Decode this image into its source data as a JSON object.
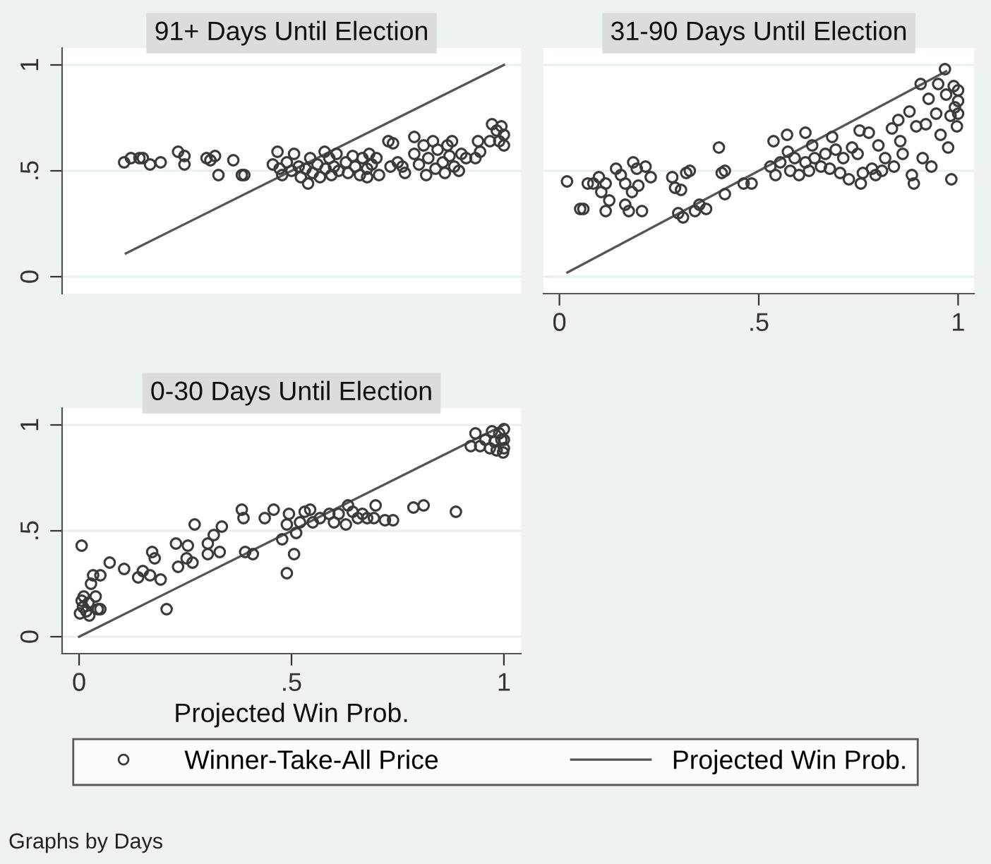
{
  "chart_data": [
    {
      "type": "scatter",
      "title": "91+ Days Until Election",
      "xlim": [
        -0.04,
        1.04
      ],
      "ylim": [
        -0.08,
        1.08
      ],
      "yticks": [
        {
          "value": 0,
          "label": "0"
        },
        {
          "value": 0.5,
          "label": ".5"
        },
        {
          "value": 1,
          "label": "1"
        }
      ],
      "grid": "y",
      "tick_labels": "y",
      "legend": "bottom",
      "series": [
        {
          "name": "Winner-Take-All Price",
          "color": "#3a3a3a",
          "marker": "circle",
          "x": [
            0.106,
            0.122,
            0.142,
            0.15,
            0.167,
            0.192,
            0.233,
            0.248,
            0.248,
            0.3,
            0.309,
            0.32,
            0.328,
            0.363,
            0.383,
            0.389,
            0.456,
            0.467,
            0.472,
            0.478,
            0.489,
            0.5,
            0.506,
            0.517,
            0.522,
            0.533,
            0.539,
            0.544,
            0.55,
            0.561,
            0.567,
            0.578,
            0.58,
            0.589,
            0.594,
            0.6,
            0.606,
            0.611,
            0.628,
            0.633,
            0.644,
            0.65,
            0.661,
            0.667,
            0.678,
            0.683,
            0.689,
            0.7,
            0.706,
            0.678,
            0.728,
            0.739,
            0.733,
            0.75,
            0.761,
            0.767,
            0.789,
            0.789,
            0.8,
            0.811,
            0.817,
            0.822,
            0.833,
            0.839,
            0.844,
            0.856,
            0.861,
            0.867,
            0.872,
            0.878,
            0.883,
            0.894,
            0.9,
            0.911,
            0.933,
            0.939,
            0.944,
            0.967,
            0.972,
            0.983,
            0.989,
            0.994,
            1.0,
            1.0
          ],
          "values": [
            0.54,
            0.56,
            0.56,
            0.56,
            0.53,
            0.54,
            0.59,
            0.57,
            0.53,
            0.56,
            0.55,
            0.57,
            0.48,
            0.55,
            0.48,
            0.48,
            0.53,
            0.59,
            0.51,
            0.48,
            0.54,
            0.5,
            0.58,
            0.52,
            0.47,
            0.51,
            0.44,
            0.56,
            0.49,
            0.53,
            0.47,
            0.59,
            0.51,
            0.56,
            0.48,
            0.52,
            0.58,
            0.5,
            0.54,
            0.49,
            0.57,
            0.52,
            0.48,
            0.56,
            0.51,
            0.58,
            0.53,
            0.56,
            0.48,
            0.47,
            0.64,
            0.63,
            0.52,
            0.54,
            0.52,
            0.49,
            0.66,
            0.58,
            0.53,
            0.62,
            0.48,
            0.56,
            0.64,
            0.51,
            0.6,
            0.54,
            0.49,
            0.62,
            0.57,
            0.64,
            0.52,
            0.5,
            0.58,
            0.56,
            0.56,
            0.64,
            0.59,
            0.64,
            0.72,
            0.69,
            0.64,
            0.71,
            0.62,
            0.67
          ]
        },
        {
          "name": "Projected Win Prob.",
          "type": "line",
          "color": "#555555",
          "x": [
            0.11,
            1.0
          ],
          "values": [
            0.11,
            1.0
          ]
        }
      ]
    },
    {
      "type": "scatter",
      "title": "31-90 Days Until Election",
      "xlim": [
        -0.04,
        1.04
      ],
      "ylim": [
        -0.08,
        1.08
      ],
      "xticks": [
        {
          "value": 0,
          "label": "0"
        },
        {
          "value": 0.5,
          "label": ".5"
        },
        {
          "value": 1,
          "label": "1"
        }
      ],
      "yticks": [
        {
          "value": 0,
          "label": null
        },
        {
          "value": 0.5,
          "label": null
        },
        {
          "value": 1,
          "label": null
        }
      ],
      "grid": "y",
      "tick_labels": "x",
      "series": [
        {
          "color": "#3a3a3a",
          "marker": "circle",
          "x": [
            0.019,
            0.052,
            0.06,
            0.071,
            0.085,
            0.099,
            0.105,
            0.116,
            0.116,
            0.125,
            0.142,
            0.154,
            0.165,
            0.165,
            0.174,
            0.182,
            0.185,
            0.194,
            0.198,
            0.207,
            0.216,
            0.229,
            0.283,
            0.29,
            0.298,
            0.305,
            0.31,
            0.318,
            0.327,
            0.34,
            0.351,
            0.368,
            0.4,
            0.407,
            0.415,
            0.415,
            0.462,
            0.482,
            0.529,
            0.537,
            0.542,
            0.554,
            0.571,
            0.573,
            0.579,
            0.59,
            0.601,
            0.617,
            0.617,
            0.626,
            0.634,
            0.64,
            0.656,
            0.667,
            0.678,
            0.684,
            0.693,
            0.704,
            0.712,
            0.726,
            0.734,
            0.748,
            0.753,
            0.756,
            0.761,
            0.776,
            0.784,
            0.793,
            0.8,
            0.809,
            0.817,
            0.834,
            0.839,
            0.85,
            0.855,
            0.861,
            0.878,
            0.884,
            0.889,
            0.895,
            0.906,
            0.911,
            0.919,
            0.926,
            0.933,
            0.945,
            0.95,
            0.956,
            0.967,
            0.97,
            0.975,
            0.981,
            0.983,
            0.989,
            0.992,
            0.997,
            1.0,
            1.0,
            1.0
          ],
          "values": [
            0.45,
            0.32,
            0.32,
            0.44,
            0.44,
            0.47,
            0.4,
            0.44,
            0.31,
            0.36,
            0.51,
            0.48,
            0.44,
            0.34,
            0.31,
            0.4,
            0.54,
            0.51,
            0.43,
            0.31,
            0.52,
            0.47,
            0.47,
            0.42,
            0.3,
            0.41,
            0.28,
            0.49,
            0.5,
            0.31,
            0.34,
            0.32,
            0.61,
            0.49,
            0.5,
            0.39,
            0.44,
            0.44,
            0.52,
            0.64,
            0.48,
            0.54,
            0.67,
            0.59,
            0.5,
            0.56,
            0.48,
            0.68,
            0.54,
            0.5,
            0.62,
            0.56,
            0.52,
            0.58,
            0.51,
            0.66,
            0.6,
            0.49,
            0.56,
            0.46,
            0.61,
            0.58,
            0.69,
            0.44,
            0.49,
            0.68,
            0.51,
            0.48,
            0.62,
            0.5,
            0.56,
            0.7,
            0.52,
            0.74,
            0.64,
            0.58,
            0.78,
            0.48,
            0.44,
            0.71,
            0.91,
            0.56,
            0.72,
            0.84,
            0.52,
            0.77,
            0.91,
            0.67,
            0.98,
            0.86,
            0.61,
            0.76,
            0.46,
            0.9,
            0.8,
            0.71,
            0.88,
            0.83,
            0.77
          ]
        },
        {
          "type": "line",
          "color": "#555555",
          "x": [
            0.02,
            0.97
          ],
          "values": [
            0.02,
            0.97
          ]
        }
      ]
    },
    {
      "type": "scatter",
      "title": "0-30 Days Until Election",
      "xlabel": "Projected Win Prob.",
      "xlim": [
        -0.04,
        1.04
      ],
      "ylim": [
        -0.08,
        1.08
      ],
      "xticks": [
        {
          "value": 0,
          "label": "0"
        },
        {
          "value": 0.5,
          "label": ".5"
        },
        {
          "value": 1,
          "label": "1"
        }
      ],
      "yticks": [
        {
          "value": 0,
          "label": "0"
        },
        {
          "value": 0.5,
          "label": ".5"
        },
        {
          "value": 1,
          "label": "1"
        }
      ],
      "grid": "y",
      "annotations": [
        "Graphs by Days"
      ],
      "series": [
        {
          "color": "#3a3a3a",
          "marker": "circle",
          "x": [
            0.006,
            0.002,
            0.006,
            0.009,
            0.011,
            0.017,
            0.022,
            0.028,
            0.024,
            0.033,
            0.039,
            0.044,
            0.05,
            0.05,
            0.072,
            0.106,
            0.139,
            0.15,
            0.167,
            0.172,
            0.178,
            0.192,
            0.206,
            0.228,
            0.233,
            0.253,
            0.256,
            0.267,
            0.272,
            0.303,
            0.303,
            0.317,
            0.331,
            0.336,
            0.383,
            0.387,
            0.391,
            0.409,
            0.437,
            0.458,
            0.478,
            0.489,
            0.489,
            0.494,
            0.506,
            0.511,
            0.52,
            0.531,
            0.544,
            0.55,
            0.567,
            0.589,
            0.6,
            0.611,
            0.628,
            0.633,
            0.644,
            0.656,
            0.667,
            0.678,
            0.694,
            0.698,
            0.72,
            0.739,
            0.787,
            0.811,
            0.887,
            0.922,
            0.933,
            0.944,
            0.956,
            0.967,
            0.972,
            0.978,
            0.983,
            0.989,
            0.994,
            0.998,
            1.0,
            1.0,
            1.0
          ],
          "values": [
            0.43,
            0.11,
            0.17,
            0.14,
            0.19,
            0.12,
            0.16,
            0.25,
            0.1,
            0.29,
            0.19,
            0.13,
            0.29,
            0.13,
            0.35,
            0.32,
            0.28,
            0.31,
            0.29,
            0.4,
            0.37,
            0.27,
            0.13,
            0.44,
            0.33,
            0.37,
            0.43,
            0.35,
            0.53,
            0.44,
            0.39,
            0.48,
            0.4,
            0.52,
            0.6,
            0.56,
            0.4,
            0.39,
            0.56,
            0.6,
            0.46,
            0.3,
            0.53,
            0.58,
            0.39,
            0.49,
            0.54,
            0.59,
            0.6,
            0.54,
            0.56,
            0.58,
            0.54,
            0.58,
            0.53,
            0.62,
            0.59,
            0.56,
            0.58,
            0.56,
            0.56,
            0.62,
            0.55,
            0.55,
            0.61,
            0.62,
            0.59,
            0.9,
            0.96,
            0.9,
            0.93,
            0.89,
            0.97,
            0.92,
            0.88,
            0.96,
            0.93,
            0.87,
            0.98,
            0.93,
            0.89
          ]
        },
        {
          "type": "line",
          "color": "#555555",
          "x": [
            0.0,
            1.0
          ],
          "values": [
            0.0,
            1.0
          ]
        }
      ]
    }
  ]
}
